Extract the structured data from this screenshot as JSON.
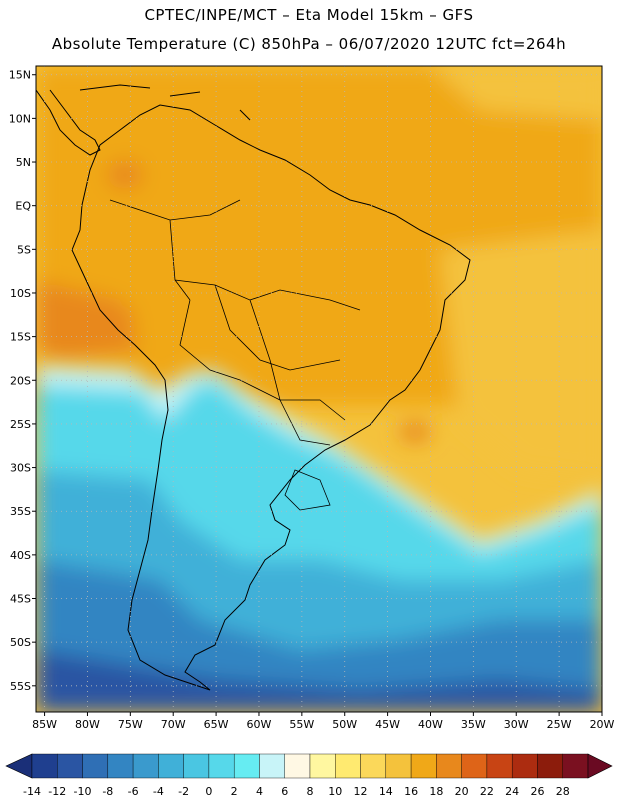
{
  "title_line1": "CPTEC/INPE/MCT  –   Eta Model 15km  –  GFS",
  "title_line2": "Absolute Temperature (C) 850hPa – 06/07/2020 12UTC fct=264h",
  "lat_labels": [
    "15N",
    "10N",
    "5N",
    "EQ",
    "5S",
    "10S",
    "15S",
    "20S",
    "25S",
    "30S",
    "35S",
    "40S",
    "45S",
    "50S",
    "55S"
  ],
  "lon_labels": [
    "85W",
    "80W",
    "75W",
    "70W",
    "65W",
    "60W",
    "55W",
    "50W",
    "45W",
    "40W",
    "35W",
    "30W",
    "25W",
    "20W"
  ],
  "colorbar": {
    "labels": [
      "-14",
      "-12",
      "-10",
      "-8",
      "-6",
      "-4",
      "-2",
      "0",
      "2",
      "4",
      "6",
      "8",
      "10",
      "12",
      "14",
      "16",
      "18",
      "20",
      "22",
      "24",
      "26",
      "28"
    ],
    "colors": [
      "#1f3f8f",
      "#2a55a3",
      "#2f6fb5",
      "#3385c2",
      "#3a9acd",
      "#40b0d8",
      "#4ac6e2",
      "#56d8ea",
      "#66ecf2",
      "#c8f4f8",
      "#fff8e4",
      "#fff7a0",
      "#ffea70",
      "#fbd85a",
      "#f4c23c",
      "#f0a818",
      "#e8881c",
      "#de6418",
      "#c84414",
      "#ac2c10",
      "#8c1c0c",
      "#7a1020"
    ]
  },
  "map": {
    "lon_range": [
      -86,
      -20
    ],
    "lat_range": [
      -58,
      16
    ],
    "grid": "dotted"
  }
}
